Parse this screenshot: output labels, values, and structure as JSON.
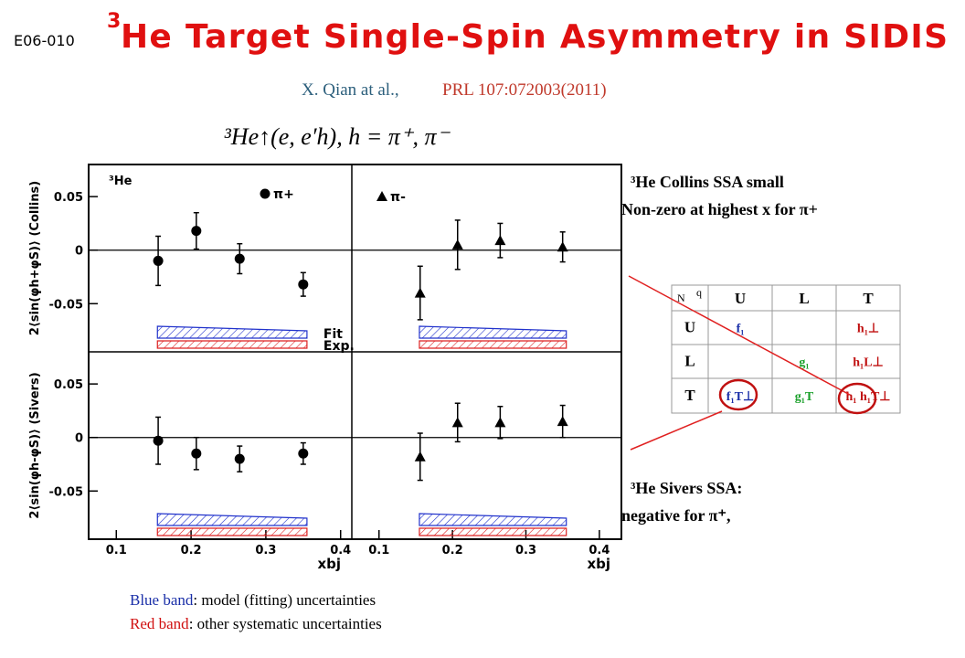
{
  "header": {
    "experiment": "E06-010",
    "title_sup": "3",
    "title": "He Target Single-Spin Asymmetry in SIDIS",
    "citation_authors": "X. Qian at al.,",
    "citation_ref": "PRL 107:072003(2011)",
    "reaction": "³He↑(e, e′h),  h = π⁺, π⁻"
  },
  "notes": {
    "collins": [
      "³He Collins SSA small",
      "Non-zero at highest x for π+"
    ],
    "sivers": [
      "³He Sivers SSA:",
      "negative for π⁺,"
    ]
  },
  "footnote": [
    {
      "key": "Blue band",
      "text": ": model (fitting) uncertainties"
    },
    {
      "key": "Red band",
      "text": ": other systematic uncertainties"
    }
  ],
  "table": {
    "corner": [
      "N",
      "q"
    ],
    "columns": [
      "U",
      "L",
      "T"
    ],
    "rows": [
      {
        "label": "U",
        "cells": [
          "f₁",
          null,
          "h₁⊥"
        ]
      },
      {
        "label": "L",
        "cells": [
          null,
          "g₁",
          "h₁L⊥"
        ]
      },
      {
        "label": "T",
        "cells": [
          "f₁T⊥",
          "g₁T",
          "h₁  h₁T⊥"
        ]
      }
    ]
  },
  "chart_data": [
    {
      "type": "scatter",
      "ylabel": "2⟨sin(φh+φS)⟩ (Collins)",
      "annotation": "³He",
      "xlim": [
        0.063,
        0.415
      ],
      "ylim": [
        -0.095,
        0.08
      ],
      "yticks": [
        -0.05,
        0,
        0.05
      ],
      "x": [
        0.156,
        0.207,
        0.265,
        0.35
      ],
      "series": [
        {
          "name": "π+",
          "color": "#000000",
          "marker": "circle",
          "values": [
            -0.01,
            0.018,
            -0.008,
            -0.032
          ],
          "errors": [
            0.023,
            0.017,
            0.014,
            0.011
          ]
        }
      ],
      "bands": [
        {
          "name": "Fit",
          "color": "#2233cc"
        },
        {
          "name": "Exp.",
          "color": "#dd2222"
        }
      ]
    },
    {
      "type": "scatter",
      "xlim": [
        0.063,
        0.43
      ],
      "ylim": [
        -0.095,
        0.08
      ],
      "x": [
        0.156,
        0.207,
        0.265,
        0.35
      ],
      "series": [
        {
          "name": "π-",
          "color": "#000000",
          "marker": "triangle",
          "values": [
            -0.04,
            0.005,
            0.009,
            0.003
          ],
          "errors": [
            0.025,
            0.023,
            0.016,
            0.014
          ]
        }
      ]
    },
    {
      "type": "scatter",
      "ylabel": "2⟨sin(φh-φS)⟩ (Sivers)",
      "xlabel": "xbj",
      "xlim": [
        0.063,
        0.415
      ],
      "ylim": [
        -0.095,
        0.08
      ],
      "yticks": [
        -0.05,
        0,
        0.05
      ],
      "xticks": [
        0.1,
        0.2,
        0.3,
        0.4
      ],
      "x": [
        0.156,
        0.207,
        0.265,
        0.35
      ],
      "series": [
        {
          "color": "#000000",
          "marker": "circle",
          "values": [
            -0.003,
            -0.015,
            -0.02,
            -0.015
          ],
          "errors": [
            0.022,
            0.015,
            0.012,
            0.01
          ]
        }
      ]
    },
    {
      "type": "scatter",
      "xlabel": "xbj",
      "xlim": [
        0.063,
        0.43
      ],
      "ylim": [
        -0.095,
        0.08
      ],
      "xticks": [
        0.1,
        0.2,
        0.3,
        0.4
      ],
      "x": [
        0.156,
        0.207,
        0.265,
        0.35
      ],
      "series": [
        {
          "color": "#000000",
          "marker": "triangle",
          "values": [
            -0.018,
            0.014,
            0.014,
            0.015
          ],
          "errors": [
            0.022,
            0.018,
            0.015,
            0.015
          ]
        }
      ]
    }
  ]
}
